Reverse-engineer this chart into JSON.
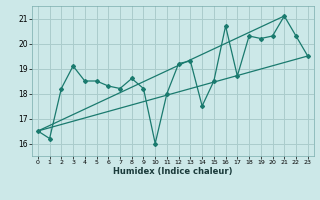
{
  "bg_color": "#cce8e8",
  "grid_color": "#aacccc",
  "line_color": "#1a7a6e",
  "xlabel": "Humidex (Indice chaleur)",
  "xlim": [
    -0.5,
    23.5
  ],
  "ylim": [
    15.5,
    21.5
  ],
  "yticks": [
    16,
    17,
    18,
    19,
    20,
    21
  ],
  "xticks": [
    0,
    1,
    2,
    3,
    4,
    5,
    6,
    7,
    8,
    9,
    10,
    11,
    12,
    13,
    14,
    15,
    16,
    17,
    18,
    19,
    20,
    21,
    22,
    23
  ],
  "line1_x": [
    0,
    1,
    2,
    3,
    4,
    5,
    6,
    7,
    8,
    9,
    10,
    11,
    12,
    13,
    14,
    15,
    16,
    17,
    18,
    19,
    20,
    21,
    22,
    23
  ],
  "line1_y": [
    16.5,
    16.2,
    18.2,
    19.1,
    18.5,
    18.5,
    18.3,
    18.2,
    18.6,
    18.2,
    16.0,
    18.0,
    19.2,
    19.3,
    17.5,
    18.5,
    20.7,
    18.7,
    20.3,
    20.2,
    20.3,
    21.1,
    20.3,
    19.5
  ],
  "trend1_x": [
    0,
    23
  ],
  "trend1_y": [
    16.5,
    19.5
  ],
  "trend2_x": [
    0,
    21
  ],
  "trend2_y": [
    16.5,
    21.1
  ]
}
